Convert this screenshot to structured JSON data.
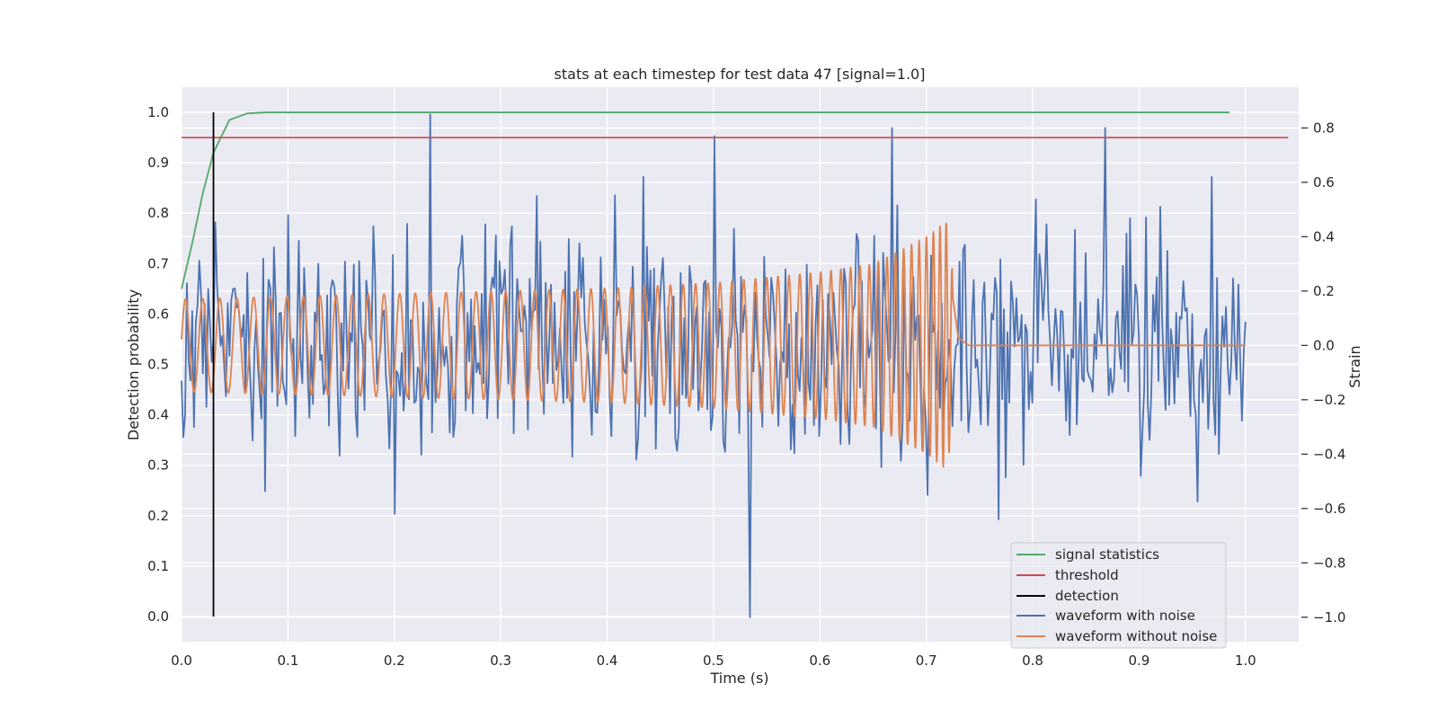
{
  "chart_data": {
    "type": "line",
    "title": "stats at each timestep for test data 47 [signal=1.0]",
    "xlabel": "Time (s)",
    "ylabel_left": "Detection probability",
    "ylabel_right": "Strain",
    "xlim": [
      0.0,
      1.05
    ],
    "ylim_left": [
      -0.05,
      1.05
    ],
    "ylim_right": [
      -1.09,
      0.95
    ],
    "x_ticks": [
      "0.0",
      "0.1",
      "0.2",
      "0.3",
      "0.4",
      "0.5",
      "0.6",
      "0.7",
      "0.8",
      "0.9",
      "1.0"
    ],
    "y_left_ticks": [
      "0.0",
      "0.1",
      "0.2",
      "0.3",
      "0.4",
      "0.5",
      "0.6",
      "0.7",
      "0.8",
      "0.9",
      "1.0"
    ],
    "y_right_ticks": [
      "−1.0",
      "−0.8",
      "−0.6",
      "−0.4",
      "−0.2",
      "0.0",
      "0.2",
      "0.4",
      "0.6",
      "0.8"
    ],
    "grid": true,
    "legend_position": "lower-right",
    "colors": {
      "signal_statistics": "#55a868",
      "threshold": "#c44e52",
      "detection": "#000000",
      "waveform_with_noise": "#4c72b0",
      "waveform_without_noise": "#dd8452",
      "plot_background": "#eaeaf2",
      "grid": "#ffffff"
    },
    "series": [
      {
        "name": "signal statistics",
        "axis": "left",
        "x": [
          0.0,
          0.01,
          0.02,
          0.03,
          0.045,
          0.062,
          0.08,
          0.1,
          0.2,
          0.5,
          0.985
        ],
        "y": [
          0.65,
          0.74,
          0.84,
          0.92,
          0.985,
          0.998,
          1.0,
          1.0,
          1.0,
          1.0,
          1.0
        ]
      },
      {
        "name": "threshold",
        "axis": "left",
        "x": [
          0.0,
          1.04
        ],
        "y": [
          0.95,
          0.95
        ]
      },
      {
        "name": "detection",
        "axis": "left",
        "x": [
          0.03,
          0.03
        ],
        "y": [
          0.0,
          1.0
        ]
      },
      {
        "name": "waveform with noise",
        "axis": "right",
        "x_range": [
          0.0,
          1.0
        ],
        "points": 600,
        "y_sample": [
          -0.13,
          0.22,
          -0.35,
          0.48,
          -0.18,
          0.31,
          -0.62,
          0.85,
          -0.24,
          0.19,
          0.55,
          -0.41,
          0.07,
          0.62,
          -0.3,
          0.77,
          -1.0,
          0.28,
          -0.16,
          0.41,
          0.8,
          -0.55,
          0.35,
          -0.64,
          0.23,
          -0.33,
          0.8,
          -0.48,
          0.12,
          0.62
        ]
      },
      {
        "name": "waveform without noise",
        "axis": "right",
        "x": [
          0.0,
          0.1,
          0.2,
          0.3,
          0.4,
          0.5,
          0.6,
          0.65,
          0.7,
          0.72,
          0.73,
          0.74,
          1.0
        ],
        "amplitude": [
          0.17,
          0.18,
          0.19,
          0.2,
          0.21,
          0.23,
          0.27,
          0.3,
          0.4,
          0.46,
          0.04,
          0.0,
          0.0
        ]
      }
    ]
  }
}
